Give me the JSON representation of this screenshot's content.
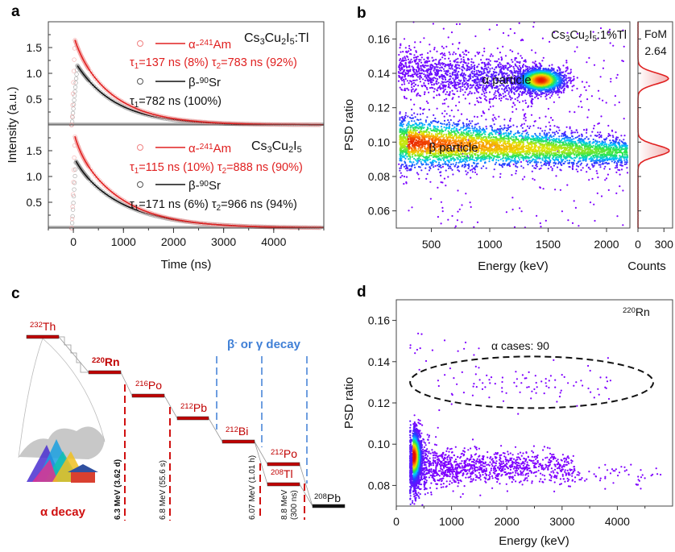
{
  "panel_labels": [
    "a",
    "b",
    "c",
    "d"
  ],
  "colors": {
    "red": "#e02020",
    "black": "#111111",
    "blue": "#3f7fd6",
    "bar_red": "#c00000",
    "grey": "#9a9a9a"
  },
  "chart_data": [
    {
      "panel": "a",
      "type": "line",
      "xlabel": "Time (ns)",
      "ylabel": "Intensity (a.u.)",
      "xlim": [
        -500,
        5000
      ],
      "xticks": [
        "0",
        "1000",
        "2000",
        "3000",
        "4000"
      ],
      "xtick_values": [
        0,
        1000,
        2000,
        3000,
        4000
      ],
      "subplots": [
        {
          "sample_parts": [
            "Cs",
            "3",
            "Cu",
            "2",
            "I",
            "5",
            ":Tl"
          ],
          "ylim": [
            0,
            2.0
          ],
          "yticks": [
            "0.5",
            "1.0",
            "1.5"
          ],
          "ytick_values": [
            0.5,
            1.0,
            1.5
          ],
          "series": [
            {
              "name_parts": [
                "α-",
                "241",
                "Am"
              ],
              "color": "#e02020",
              "peak": 1.65,
              "peak_time": 30,
              "components": [
                {
                  "tau": 137,
                  "fraction": 8
                },
                {
                  "tau": 783,
                  "fraction": 92
                }
              ],
              "fit_parts": [
                "τ",
                "1",
                "=137 ns (8%)  τ",
                "2",
                "=783 ns (92%)"
              ]
            },
            {
              "name_parts": [
                "β-",
                "90",
                "Sr"
              ],
              "color": "#111111",
              "peak": 1.15,
              "peak_time": 80,
              "components": [
                {
                  "tau": 782,
                  "fraction": 100
                }
              ],
              "fit_parts": [
                "τ",
                "1",
                "=782 ns (100%)"
              ]
            }
          ]
        },
        {
          "sample_parts": [
            "Cs",
            "3",
            "Cu",
            "2",
            "I",
            "5",
            ""
          ],
          "ylim": [
            0,
            2.0
          ],
          "yticks": [
            "0.5",
            "1.0",
            "1.5"
          ],
          "ytick_values": [
            0.5,
            1.0,
            1.5
          ],
          "series": [
            {
              "name_parts": [
                "α-",
                "241",
                "Am"
              ],
              "color": "#e02020",
              "peak": 1.78,
              "peak_time": 30,
              "components": [
                {
                  "tau": 115,
                  "fraction": 10
                },
                {
                  "tau": 888,
                  "fraction": 90
                }
              ],
              "fit_parts": [
                "τ",
                "1",
                "=115 ns (10%)  τ",
                "2",
                "=888 ns (90%)"
              ]
            },
            {
              "name_parts": [
                "β-",
                "90",
                "Sr"
              ],
              "color": "#111111",
              "peak": 1.3,
              "peak_time": 50,
              "components": [
                {
                  "tau": 171,
                  "fraction": 6
                },
                {
                  "tau": 966,
                  "fraction": 94
                }
              ],
              "fit_parts": [
                "τ",
                "1",
                "=171 ns (6%)  τ",
                "2",
                "=966 ns (94%)"
              ]
            }
          ]
        }
      ]
    },
    {
      "panel": "b",
      "type": "scatter",
      "sample_parts": [
        "Cs",
        "3",
        "Cu",
        "2",
        "I",
        "5",
        ":1%Tl"
      ],
      "xlabel": "Energy (keV)",
      "ylabel": "PSD ratio",
      "xlim": [
        200,
        2200
      ],
      "ylim": [
        0.05,
        0.17
      ],
      "xticks": [
        "500",
        "1000",
        "1500",
        "2000"
      ],
      "xtick_values": [
        500,
        1000,
        1500,
        2000
      ],
      "yticks": [
        "0.06",
        "0.08",
        "0.10",
        "0.12",
        "0.14",
        "0.16"
      ],
      "ytick_values": [
        0.06,
        0.08,
        0.1,
        0.12,
        0.14,
        0.16
      ],
      "clusters": [
        {
          "label": "α particle",
          "center_energy": 1450,
          "center_psd": 0.136
        },
        {
          "label": "β particle",
          "center_energy": 400,
          "center_psd": 0.098
        }
      ],
      "histogram": {
        "xlabel": "Counts",
        "xlim": [
          0,
          400
        ],
        "xticks": [
          "0",
          "300"
        ],
        "xtick_values": [
          0,
          300
        ],
        "peaks": [
          {
            "psd": 0.137,
            "counts": 350
          },
          {
            "psd": 0.095,
            "counts": 360
          }
        ],
        "fom_label": "FoM",
        "fom_value": "2.64"
      }
    },
    {
      "panel": "d",
      "type": "scatter",
      "source_parts": [
        "",
        "220",
        "Rn"
      ],
      "xlabel": "Energy (keV)",
      "ylabel": "PSD ratio",
      "xlim": [
        0,
        5000
      ],
      "ylim": [
        0.07,
        0.17
      ],
      "xticks": [
        "0",
        "1000",
        "2000",
        "3000",
        "4000"
      ],
      "xtick_values": [
        0,
        1000,
        2000,
        3000,
        4000
      ],
      "yticks": [
        "0.08",
        "0.10",
        "0.12",
        "0.14",
        "0.16"
      ],
      "ytick_values": [
        0.08,
        0.1,
        0.12,
        0.14,
        0.16
      ],
      "annotation": "α cases: 90",
      "alpha_count": 90,
      "ellipse": {
        "center_energy": 2450,
        "center_psd": 0.13,
        "energy_halfwidth": 2200,
        "psd_halfwidth": 0.0125
      }
    }
  ],
  "decay_chain": {
    "alpha_label": "α decay",
    "beta_gamma_label_parts": [
      "β",
      "-",
      " or γ decay"
    ],
    "nuclides": [
      {
        "mass": "232",
        "symbol": "Th"
      },
      {
        "mass": "220",
        "symbol": "Rn"
      },
      {
        "mass": "216",
        "symbol": "Po"
      },
      {
        "mass": "212",
        "symbol": "Pb"
      },
      {
        "mass": "212",
        "symbol": "Bi"
      },
      {
        "mass": "212",
        "symbol": "Po"
      },
      {
        "mass": "208",
        "symbol": "Tl"
      },
      {
        "mass": "208",
        "symbol": "Pb"
      }
    ],
    "alpha_decays": [
      "6.3 MeV (3.62 d)",
      "6.8 MeV (55.6 s)",
      "6.07 MeV (1.01 h)",
      "8.8 MeV",
      "(300 ns)"
    ]
  }
}
